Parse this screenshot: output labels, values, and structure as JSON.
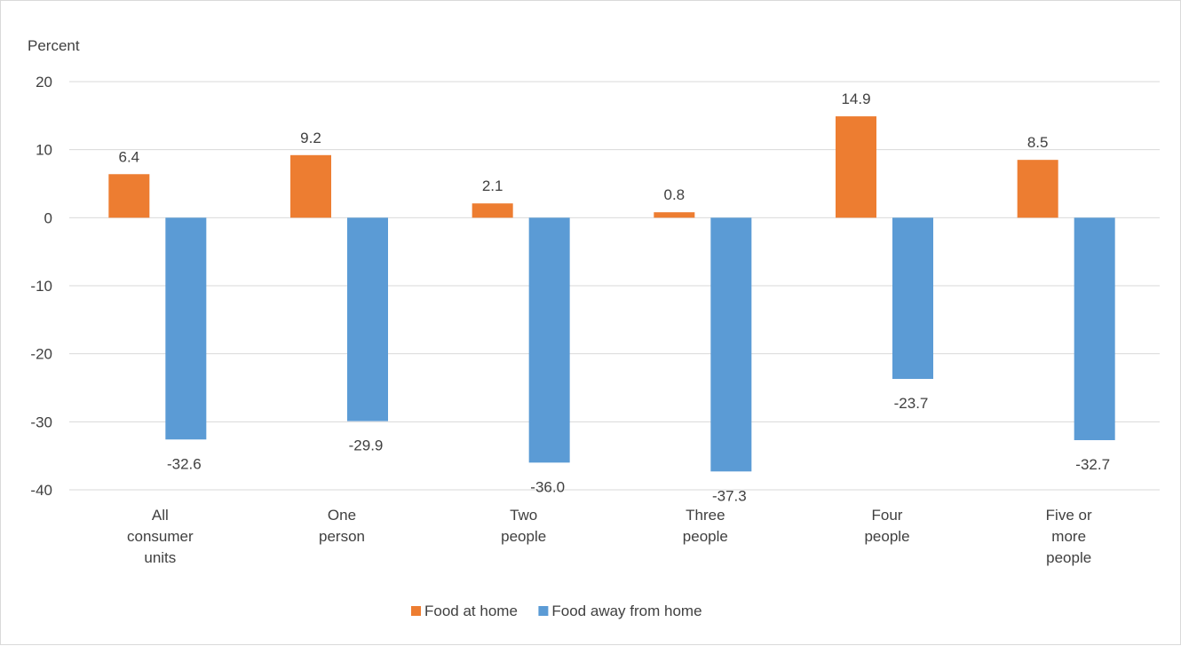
{
  "chart_data": {
    "type": "bar",
    "ylabel": "Percent",
    "ylim": [
      -40,
      20
    ],
    "yticks": [
      20,
      10,
      0,
      -10,
      -20,
      -30,
      -40
    ],
    "grid": true,
    "legend_position": "bottom",
    "categories": [
      [
        "All",
        "consumer",
        "units"
      ],
      [
        "One",
        "person"
      ],
      [
        "Two",
        "people"
      ],
      [
        "Three",
        "people"
      ],
      [
        "Four",
        "people"
      ],
      [
        "Five or",
        "more",
        "people"
      ]
    ],
    "series": [
      {
        "name": "Food at home",
        "color": "#ed7d31",
        "values": [
          6.4,
          9.2,
          2.1,
          0.8,
          14.9,
          8.5
        ],
        "labels": [
          "6.4",
          "9.2",
          "2.1",
          "0.8",
          "14.9",
          "8.5"
        ]
      },
      {
        "name": "Food away from home",
        "color": "#5b9bd5",
        "values": [
          -32.6,
          -29.9,
          -36.0,
          -37.3,
          -23.7,
          -32.7
        ],
        "labels": [
          "-32.6",
          "-29.9",
          "-36.0",
          "-37.3",
          "-23.7",
          "-32.7"
        ]
      }
    ]
  }
}
